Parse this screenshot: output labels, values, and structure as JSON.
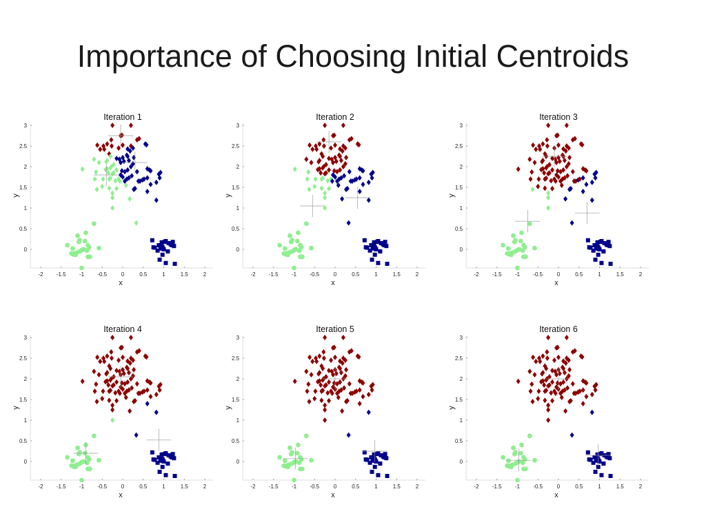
{
  "slide": {
    "title": "Importance of Choosing Initial Centroids"
  },
  "chart_data": {
    "type": "scatter",
    "xlabel": "x",
    "ylabel": "y",
    "xlim": [
      -2.25,
      2.2
    ],
    "ylim": [
      -0.45,
      3.05
    ],
    "xticks": [
      "-2",
      "-1.5",
      "-1",
      "-0.5",
      "0",
      "0.5",
      "1",
      "1.5",
      "2"
    ],
    "xtick_values": [
      -2,
      -1.5,
      -1,
      -0.5,
      0,
      0.5,
      1,
      1.5,
      2
    ],
    "yticks": [
      "0",
      "0.5",
      "1",
      "1.5",
      "2",
      "2.5",
      "3"
    ],
    "ytick_values": [
      0,
      0.5,
      1,
      1.5,
      2,
      2.5,
      3
    ],
    "grid": false,
    "colors": {
      "r": "#8b0000",
      "g": "#90ee90",
      "b": "#00008b",
      "centroid": "#999999"
    },
    "marker_shapes": {
      "d": "diamond",
      "o": "circle",
      "s": "square"
    },
    "points_format": [
      "x",
      "y",
      "marker",
      "cluster color per iteration 1-6"
    ],
    "points": [
      [
        -0.25,
        3.0,
        "d",
        "rrrrrr"
      ],
      [
        0.2,
        3.0,
        "d",
        "rrrrrr"
      ],
      [
        -0.05,
        2.75,
        "d",
        "rrrrrr"
      ],
      [
        -0.02,
        2.76,
        "d",
        "rrrrrr"
      ],
      [
        0.35,
        2.65,
        "d",
        "rrrrrr"
      ],
      [
        0.4,
        2.68,
        "d",
        "rrrrrr"
      ],
      [
        -0.28,
        2.65,
        "d",
        "rrrrrr"
      ],
      [
        -0.62,
        2.52,
        "d",
        "rrrrrr"
      ],
      [
        -0.47,
        2.5,
        "d",
        "rrrrrr"
      ],
      [
        -0.55,
        2.42,
        "d",
        "rrrrrr"
      ],
      [
        -0.45,
        2.42,
        "d",
        "rrrrrr"
      ],
      [
        -0.38,
        2.55,
        "d",
        "rrrrrr"
      ],
      [
        -0.27,
        2.5,
        "d",
        "rrrrrr"
      ],
      [
        -0.1,
        2.45,
        "d",
        "rrrrrr"
      ],
      [
        0.0,
        2.52,
        "d",
        "rrrrrr"
      ],
      [
        0.2,
        2.5,
        "d",
        "rrrrrr"
      ],
      [
        0.12,
        2.43,
        "d",
        "brrrrr"
      ],
      [
        0.25,
        2.45,
        "d",
        "brrrrr"
      ],
      [
        0.18,
        2.38,
        "d",
        "brrrrr"
      ],
      [
        0.55,
        2.55,
        "d",
        "brrrrr"
      ],
      [
        0.58,
        2.53,
        "d",
        "brrrrr"
      ],
      [
        -0.33,
        2.31,
        "d",
        "rrrrrr"
      ],
      [
        -0.3,
        2.25,
        "d",
        "grrrrr"
      ],
      [
        -0.7,
        2.18,
        "d",
        "grrrrr"
      ],
      [
        -0.58,
        2.1,
        "d",
        "grrrrr"
      ],
      [
        -0.4,
        2.12,
        "d",
        "grrrrr"
      ],
      [
        -0.38,
        2.15,
        "d",
        "grrrrr"
      ],
      [
        -0.15,
        2.2,
        "d",
        "brrrrr"
      ],
      [
        -0.08,
        2.18,
        "d",
        "brrrrr"
      ],
      [
        -0.05,
        2.1,
        "d",
        "brrrrr"
      ],
      [
        0.0,
        2.22,
        "d",
        "brrrrr"
      ],
      [
        0.03,
        2.13,
        "d",
        "brrrrr"
      ],
      [
        0.1,
        2.28,
        "d",
        "brrrrr"
      ],
      [
        0.12,
        2.25,
        "d",
        "brrrrr"
      ],
      [
        0.15,
        2.15,
        "d",
        "brrrrr"
      ],
      [
        0.27,
        2.22,
        "d",
        "brrrrr"
      ],
      [
        0.25,
        2.07,
        "d",
        "brrrrr"
      ],
      [
        0.2,
        2.0,
        "d",
        "brrrrr"
      ],
      [
        -0.22,
        2.05,
        "d",
        "grrrrr"
      ],
      [
        -0.28,
        2.0,
        "d",
        "grrrrr"
      ],
      [
        -0.3,
        1.97,
        "d",
        "grrrrr"
      ],
      [
        -0.38,
        1.95,
        "d",
        "grrrrr"
      ],
      [
        -0.35,
        1.85,
        "d",
        "grrrrr"
      ],
      [
        -0.25,
        1.83,
        "d",
        "grrrrr"
      ],
      [
        -0.22,
        1.85,
        "d",
        "grrrrr"
      ],
      [
        -0.42,
        1.93,
        "d",
        "grrrrr"
      ],
      [
        -0.15,
        1.92,
        "d",
        "grrrrr"
      ],
      [
        -0.02,
        1.9,
        "d",
        "brrrrr"
      ],
      [
        0.05,
        1.88,
        "d",
        "brrrrr"
      ],
      [
        0.12,
        1.92,
        "d",
        "brrrrr"
      ],
      [
        -0.05,
        1.8,
        "d",
        "bbrrrr"
      ],
      [
        0.0,
        1.75,
        "d",
        "bbrrrr"
      ],
      [
        -0.65,
        1.87,
        "d",
        "ggrrrr"
      ],
      [
        -0.68,
        1.7,
        "d",
        "ggrrrr"
      ],
      [
        -0.48,
        1.7,
        "d",
        "ggrrrr"
      ],
      [
        -0.33,
        1.7,
        "d",
        "ggrrrr"
      ],
      [
        -0.3,
        1.72,
        "d",
        "ggrrrr"
      ],
      [
        -0.18,
        1.66,
        "d",
        "ggrrrr"
      ],
      [
        -0.1,
        1.7,
        "d",
        "ggrrrr"
      ],
      [
        -0.07,
        1.65,
        "d",
        "gbrrrr"
      ],
      [
        0.05,
        1.65,
        "d",
        "bbrrrr"
      ],
      [
        0.1,
        1.7,
        "d",
        "bbrrrr"
      ],
      [
        0.15,
        1.73,
        "d",
        "bbrrrr"
      ],
      [
        0.22,
        1.78,
        "d",
        "bbrrrr"
      ],
      [
        0.35,
        1.88,
        "d",
        "bbrrrr"
      ],
      [
        0.38,
        1.65,
        "d",
        "bbrrrr"
      ],
      [
        0.42,
        1.65,
        "d",
        "bbrrrr"
      ],
      [
        0.48,
        1.68,
        "d",
        "bbbrrr"
      ],
      [
        0.52,
        1.7,
        "d",
        "bbrrrr"
      ],
      [
        0.6,
        1.73,
        "d",
        "bbbrrr"
      ],
      [
        0.6,
        1.95,
        "d",
        "bbrrrr"
      ],
      [
        0.65,
        1.92,
        "d",
        "bbrrrr"
      ],
      [
        0.68,
        1.9,
        "d",
        "bbrrrr"
      ],
      [
        0.88,
        1.82,
        "d",
        "bbbrrr"
      ],
      [
        0.92,
        1.86,
        "d",
        "bbbrrr"
      ],
      [
        0.9,
        1.73,
        "d",
        "bbbrrr"
      ],
      [
        0.82,
        1.62,
        "d",
        "bbbrrr"
      ],
      [
        0.68,
        1.57,
        "d",
        "bbbrrr"
      ],
      [
        -0.63,
        1.45,
        "d",
        "gggrrr"
      ],
      [
        -0.5,
        1.52,
        "d",
        "ggrrrr"
      ],
      [
        -0.33,
        1.48,
        "d",
        "ggrrrr"
      ],
      [
        -0.15,
        1.47,
        "d",
        "ggrrrr"
      ],
      [
        0.08,
        1.55,
        "d",
        "gbrrrr"
      ],
      [
        0.27,
        1.45,
        "d",
        "bbbrrr"
      ],
      [
        0.3,
        1.47,
        "d",
        "bbbrrr"
      ],
      [
        -0.25,
        1.36,
        "d",
        "gggrrr"
      ],
      [
        -0.25,
        1.25,
        "d",
        "gggrrr"
      ],
      [
        0.17,
        1.22,
        "d",
        "gbbrrr"
      ],
      [
        0.6,
        1.4,
        "d",
        "bbbbrr"
      ],
      [
        0.82,
        1.19,
        "d",
        "bbbbbb"
      ],
      [
        -0.98,
        1.94,
        "d",
        "ggrrrr"
      ],
      [
        -0.25,
        1.0,
        "d",
        "ggggrr"
      ],
      [
        0.33,
        0.64,
        "d",
        "gbbbbb"
      ],
      [
        -1.35,
        0.1,
        "o",
        "gggggg"
      ],
      [
        -1.22,
        0.02,
        "o",
        "gggggg"
      ],
      [
        -1.25,
        -0.1,
        "o",
        "gggggg"
      ],
      [
        -1.2,
        -0.12,
        "o",
        "gggggg"
      ],
      [
        -1.15,
        -0.13,
        "o",
        "gggggg"
      ],
      [
        -1.12,
        -0.08,
        "o",
        "gggggg"
      ],
      [
        -1.1,
        0.33,
        "o",
        "gggggg"
      ],
      [
        -1.05,
        0.22,
        "o",
        "gggggg"
      ],
      [
        -1.07,
        0.18,
        "o",
        "gggggg"
      ],
      [
        -1.05,
        -0.05,
        "o",
        "gggggg"
      ],
      [
        -1.0,
        -0.02,
        "o",
        "gggggg"
      ],
      [
        -0.97,
        0.0,
        "o",
        "gggggg"
      ],
      [
        -0.95,
        0.0,
        "o",
        "gggggg"
      ],
      [
        -0.92,
        0.2,
        "o",
        "gggggg"
      ],
      [
        -0.9,
        0.4,
        "o",
        "gggggg"
      ],
      [
        -0.85,
        0.1,
        "o",
        "gggggg"
      ],
      [
        -0.82,
        0.05,
        "o",
        "gggggg"
      ],
      [
        -0.87,
        -0.03,
        "o",
        "gggggg"
      ],
      [
        -0.85,
        -0.18,
        "o",
        "gggggg"
      ],
      [
        -0.8,
        -0.18,
        "o",
        "gggggg"
      ],
      [
        -0.58,
        0.03,
        "o",
        "gggggg"
      ],
      [
        -1.0,
        -0.45,
        "o",
        "gggggg"
      ],
      [
        -0.7,
        0.62,
        "o",
        "gggggg"
      ],
      [
        -1.18,
        -0.1,
        "o",
        "gggggg"
      ],
      [
        0.72,
        0.22,
        "s",
        "bbbbbb"
      ],
      [
        0.75,
        0.05,
        "s",
        "bbbbbb"
      ],
      [
        0.78,
        0.04,
        "s",
        "bbbbbb"
      ],
      [
        0.85,
        -0.03,
        "s",
        "bbbbbb"
      ],
      [
        0.88,
        0.1,
        "s",
        "bbbbbb"
      ],
      [
        0.9,
        -0.25,
        "s",
        "bbbbbb"
      ],
      [
        0.92,
        0.02,
        "s",
        "bbbbbb"
      ],
      [
        0.95,
        0.17,
        "s",
        "bbbbbb"
      ],
      [
        0.97,
        0.05,
        "s",
        "bbbbbb"
      ],
      [
        0.97,
        -0.13,
        "s",
        "bbbbbb"
      ],
      [
        1.0,
        0.0,
        "s",
        "bbbbbb"
      ],
      [
        0.98,
        0.02,
        "s",
        "bbbbbb"
      ],
      [
        1.02,
        0.18,
        "s",
        "bbbbbb"
      ],
      [
        1.05,
        0.2,
        "s",
        "bbbbbb"
      ],
      [
        1.05,
        -0.33,
        "s",
        "bbbbbb"
      ],
      [
        1.1,
        -0.05,
        "s",
        "bbbbbb"
      ],
      [
        1.12,
        0.15,
        "s",
        "bbbbbb"
      ],
      [
        1.17,
        0.12,
        "s",
        "bbbbbb"
      ],
      [
        1.2,
        0.1,
        "s",
        "bbbbbb"
      ],
      [
        1.22,
        0.18,
        "s",
        "bbbbbb"
      ],
      [
        1.25,
        0.08,
        "s",
        "bbbbbb"
      ],
      [
        1.27,
        -0.35,
        "s",
        "bbbbbb"
      ],
      [
        0.95,
        0.12,
        "s",
        "bbbbbb"
      ]
    ],
    "iterations": [
      {
        "title": "Iteration 1",
        "centroids": {
          "r": [
            -0.05,
            2.75
          ],
          "g": [
            -0.4,
            1.8
          ],
          "b": [
            0.3,
            2.1
          ]
        }
      },
      {
        "title": "Iteration 2",
        "centroids": {
          "r": [
            -0.15,
            2.6
          ],
          "g": [
            -0.55,
            1.05
          ],
          "b": [
            0.55,
            1.25
          ]
        }
      },
      {
        "title": "Iteration 3",
        "centroids": {
          "r": [
            -0.1,
            2.25
          ],
          "g": [
            -0.75,
            0.68
          ],
          "b": [
            0.7,
            0.88
          ]
        }
      },
      {
        "title": "Iteration 4",
        "centroids": {
          "r": [
            -0.05,
            2.05
          ],
          "g": [
            -0.9,
            0.2
          ],
          "b": [
            0.88,
            0.52
          ]
        }
      },
      {
        "title": "Iteration 5",
        "centroids": {
          "r": [
            0.0,
            2.0
          ],
          "g": [
            -0.97,
            0.07
          ],
          "b": [
            0.97,
            0.25
          ]
        }
      },
      {
        "title": "Iteration 6",
        "centroids": {
          "r": [
            0.0,
            2.0
          ],
          "g": [
            -0.97,
            0.03
          ],
          "b": [
            0.97,
            0.15
          ]
        }
      }
    ]
  }
}
